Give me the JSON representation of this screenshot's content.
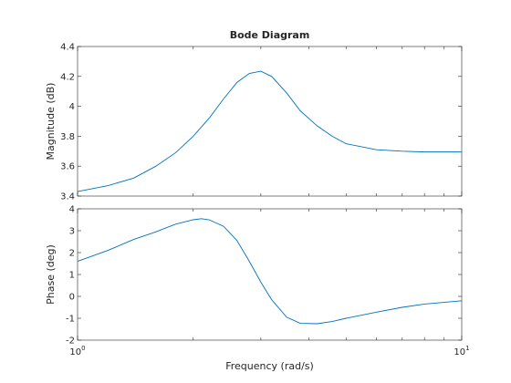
{
  "chart_data": {
    "type": "line",
    "title": "Bode Diagram",
    "xlabel": "Frequency  (rad/s)",
    "x_scale": "log",
    "xlim": [
      1,
      10
    ],
    "x_ticks": [
      1,
      10
    ],
    "x_tick_labels": [
      "10^0",
      "10^1"
    ],
    "grid": false,
    "line_color": "#0072BD",
    "panels": [
      {
        "ylabel": "Magnitude (dB)",
        "ylim": [
          3.4,
          4.4
        ],
        "y_ticks": [
          3.4,
          3.6,
          3.8,
          4,
          4.2,
          4.4
        ],
        "y_tick_labels": [
          "3.4",
          "3.6",
          "3.8",
          "4",
          "4.2",
          "4.4"
        ],
        "x": [
          1.0,
          1.2,
          1.4,
          1.6,
          1.8,
          2.0,
          2.2,
          2.4,
          2.6,
          2.8,
          3.0,
          3.2,
          3.5,
          3.8,
          4.2,
          4.6,
          5.0,
          6.0,
          7.0,
          8.0,
          10.0
        ],
        "y": [
          3.43,
          3.47,
          3.52,
          3.6,
          3.69,
          3.8,
          3.92,
          4.05,
          4.16,
          4.22,
          4.235,
          4.2,
          4.09,
          3.97,
          3.87,
          3.8,
          3.75,
          3.71,
          3.7,
          3.695,
          3.695
        ]
      },
      {
        "ylabel": "Phase (deg)",
        "ylim": [
          -2,
          4
        ],
        "y_ticks": [
          -2,
          -1,
          0,
          1,
          2,
          3,
          4
        ],
        "y_tick_labels": [
          "-2",
          "-1",
          "0",
          "1",
          "2",
          "3",
          "4"
        ],
        "x": [
          1.0,
          1.2,
          1.4,
          1.6,
          1.8,
          2.0,
          2.1,
          2.2,
          2.4,
          2.6,
          2.8,
          3.0,
          3.2,
          3.5,
          3.8,
          4.2,
          4.6,
          5.0,
          6.0,
          7.0,
          8.0,
          10.0
        ],
        "y": [
          1.6,
          2.1,
          2.6,
          2.95,
          3.3,
          3.5,
          3.55,
          3.5,
          3.2,
          2.55,
          1.6,
          0.65,
          -0.15,
          -0.95,
          -1.23,
          -1.25,
          -1.15,
          -1.0,
          -0.72,
          -0.5,
          -0.35,
          -0.2
        ]
      }
    ]
  }
}
